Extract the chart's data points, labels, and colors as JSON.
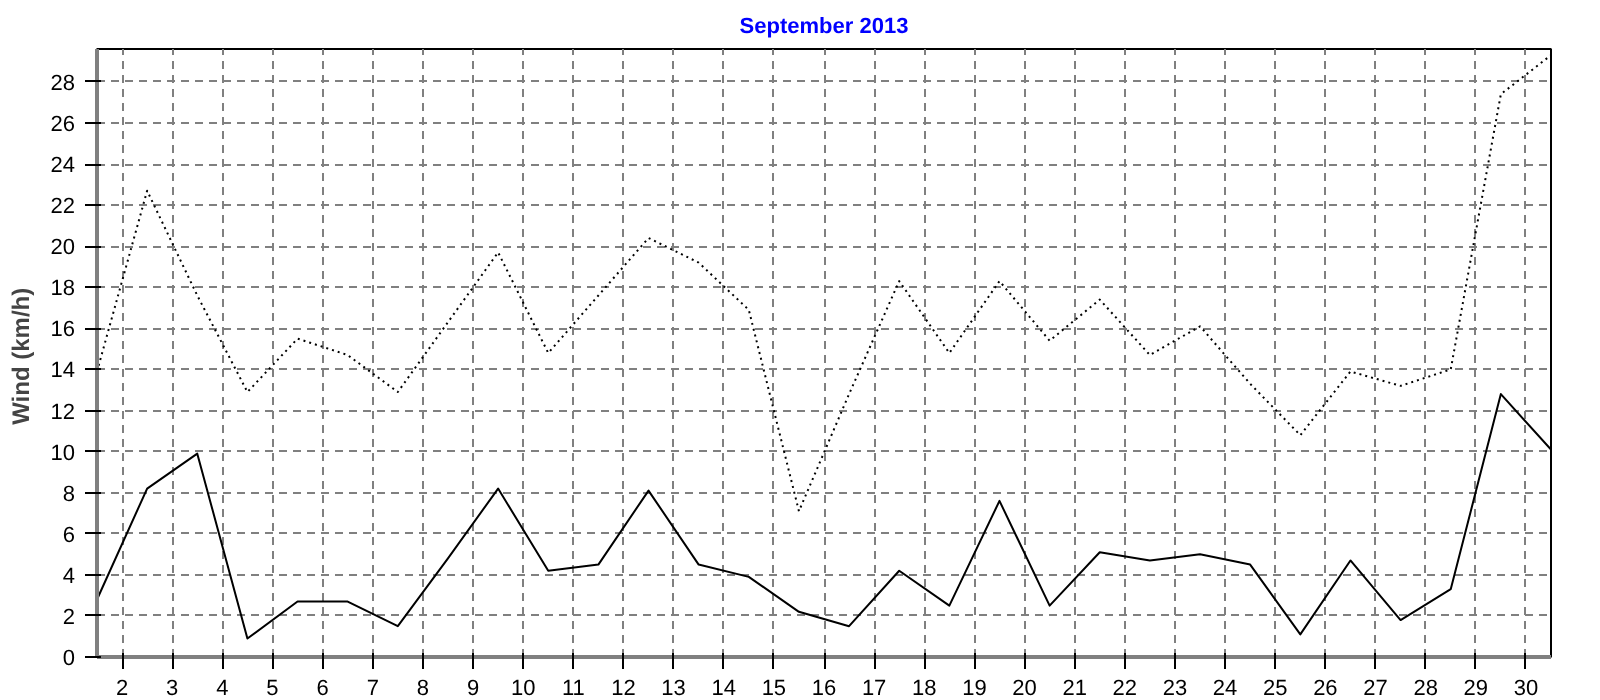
{
  "chart_data": {
    "type": "line",
    "title": "September 2013",
    "ylabel": "Wind  (km/h)",
    "x": [
      1.5,
      2.5,
      3.5,
      4.5,
      5.5,
      6.5,
      7.5,
      8.5,
      9.5,
      10.5,
      11.5,
      12.5,
      13.5,
      14.5,
      15.5,
      16.5,
      17.5,
      18.5,
      19.5,
      20.5,
      21.5,
      22.5,
      23.5,
      24.5,
      25.5,
      26.5,
      27.5,
      28.5,
      29.5,
      30.5
    ],
    "xlim": [
      1.5,
      30.5
    ],
    "xticks": [
      2,
      3,
      4,
      5,
      6,
      7,
      8,
      9,
      10,
      11,
      12,
      13,
      14,
      15,
      16,
      17,
      18,
      19,
      20,
      21,
      22,
      23,
      24,
      25,
      26,
      27,
      28,
      29,
      30
    ],
    "ylim": [
      0,
      29.6
    ],
    "yticks": [
      0,
      2,
      4,
      6,
      8,
      10,
      12,
      14,
      16,
      18,
      20,
      22,
      24,
      26,
      28
    ],
    "grid": true,
    "marker": "none",
    "series": [
      {
        "color": "#000000",
        "line_style": "dotted",
        "values": [
          13.9,
          22.7,
          17.6,
          12.9,
          15.5,
          14.7,
          12.9,
          16.3,
          19.7,
          14.8,
          17.6,
          20.4,
          19.2,
          16.9,
          7.1,
          12.8,
          18.3,
          14.8,
          18.3,
          15.4,
          17.4,
          14.7,
          16.1,
          13.3,
          10.8,
          13.9,
          13.2,
          14.0,
          27.4,
          29.3
        ]
      },
      {
        "color": "#000000",
        "line_style": "solid",
        "values": [
          2.8,
          8.2,
          9.9,
          0.9,
          2.7,
          2.7,
          1.5,
          4.8,
          8.2,
          4.2,
          4.5,
          8.1,
          4.5,
          3.9,
          2.2,
          1.5,
          4.2,
          2.5,
          7.6,
          2.5,
          5.1,
          4.7,
          5.0,
          4.5,
          1.1,
          4.7,
          1.8,
          3.3,
          12.8,
          10.1
        ]
      }
    ]
  }
}
